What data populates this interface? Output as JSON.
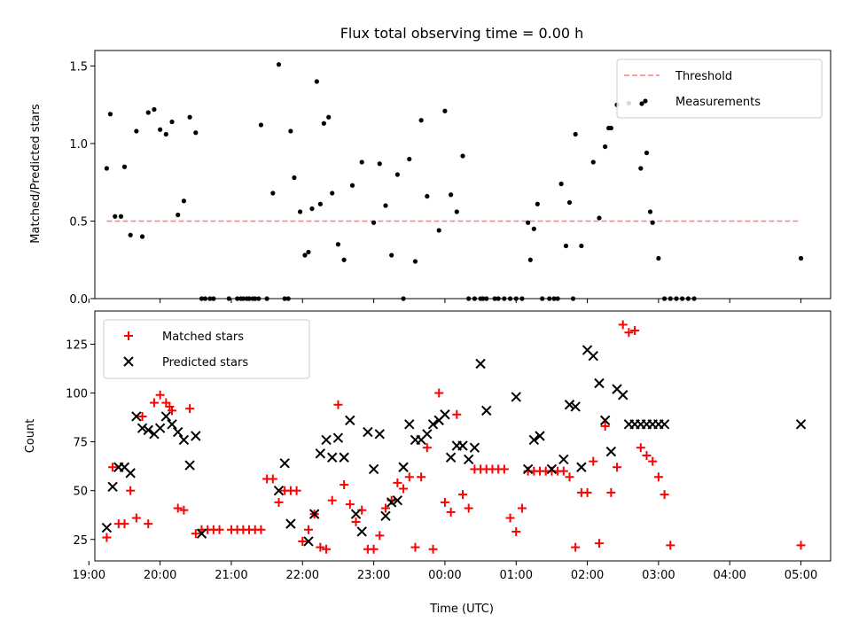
{
  "title": "Flux total observing time = 0.00 h",
  "xlabel": "Time (UTC)",
  "colors": {
    "threshold": "#ff7f7f",
    "measurement": "#000000",
    "matched": "#ff0000",
    "predicted": "#000000"
  },
  "chart_data": [
    {
      "type": "scatter",
      "ylabel": "Matched/Predicted stars",
      "ylim": [
        0,
        1.6
      ],
      "xlim": [
        "19:05",
        "05:25"
      ],
      "x_ticks": [
        "19:00",
        "20:00",
        "21:00",
        "22:00",
        "23:00",
        "00:00",
        "01:00",
        "02:00",
        "03:00",
        "04:00",
        "05:00"
      ],
      "y_ticks": [
        "0.0",
        "0.5",
        "1.0",
        "1.5"
      ],
      "legend_position": "top-right",
      "threshold": {
        "name": "Threshold",
        "value": 0.5,
        "x_range": [
          "19:15",
          "05:00"
        ]
      },
      "series": [
        {
          "name": "Measurements",
          "x": [
            "19:15",
            "19:18",
            "19:22",
            "19:27",
            "19:30",
            "19:35",
            "19:40",
            "19:45",
            "19:50",
            "19:55",
            "20:00",
            "20:05",
            "20:10",
            "20:15",
            "20:20",
            "20:25",
            "20:30",
            "20:35",
            "20:38",
            "20:42",
            "20:45",
            "20:58",
            "21:05",
            "21:08",
            "21:10",
            "21:13",
            "21:15",
            "21:18",
            "21:20",
            "21:23",
            "21:25",
            "21:30",
            "21:35",
            "21:40",
            "21:45",
            "21:48",
            "21:50",
            "21:53",
            "21:58",
            "22:02",
            "22:05",
            "22:08",
            "22:12",
            "22:15",
            "22:18",
            "22:22",
            "22:25",
            "22:30",
            "22:35",
            "22:42",
            "22:50",
            "23:00",
            "23:05",
            "23:10",
            "23:15",
            "23:20",
            "23:25",
            "23:30",
            "23:35",
            "23:40",
            "23:45",
            "23:55",
            "24:00",
            "24:05",
            "24:10",
            "24:15",
            "24:20",
            "24:25",
            "24:30",
            "24:32",
            "24:35",
            "24:42",
            "24:45",
            "24:50",
            "24:55",
            "25:00",
            "25:05",
            "25:10",
            "25:12",
            "25:15",
            "25:18",
            "25:22",
            "25:28",
            "25:32",
            "25:35",
            "25:38",
            "25:42",
            "25:45",
            "25:48",
            "25:50",
            "25:55",
            "26:05",
            "26:10",
            "26:15",
            "26:18",
            "26:20",
            "26:25",
            "26:35",
            "26:45",
            "26:50",
            "26:53",
            "26:55",
            "27:00",
            "27:05",
            "27:10",
            "27:15",
            "27:20",
            "27:25",
            "27:30",
            "29:00"
          ],
          "y": [
            0.84,
            1.19,
            0.53,
            0.53,
            0.85,
            0.41,
            1.08,
            0.4,
            1.2,
            1.22,
            1.09,
            1.06,
            1.14,
            0.54,
            0.63,
            1.17,
            1.07,
            0.0,
            0.0,
            0.0,
            0.0,
            0.0,
            0.0,
            0.0,
            0.0,
            0.0,
            0.0,
            0.0,
            0.0,
            0.0,
            1.12,
            0.0,
            0.68,
            1.51,
            0.0,
            0.0,
            1.08,
            0.78,
            0.56,
            0.28,
            0.3,
            0.58,
            1.4,
            0.61,
            1.13,
            1.17,
            0.68,
            0.35,
            0.25,
            0.73,
            0.88,
            0.49,
            0.87,
            0.6,
            0.28,
            0.8,
            0.0,
            0.9,
            0.24,
            1.15,
            0.66,
            0.44,
            1.21,
            0.67,
            0.56,
            0.92,
            0.0,
            0.0,
            0.0,
            0.0,
            0.0,
            0.0,
            0.0,
            0.0,
            0.0,
            0.0,
            0.0,
            0.49,
            0.25,
            0.45,
            0.61,
            0.0,
            0.0,
            0.0,
            0.0,
            0.74,
            0.34,
            0.62,
            0.0,
            1.06,
            0.34,
            0.88,
            0.52,
            0.98,
            1.1,
            1.1,
            1.25,
            1.26,
            0.84,
            0.94,
            0.56,
            0.49,
            0.26,
            0.0,
            0.0,
            0.0,
            0.0,
            0.0,
            0.0,
            0.26
          ]
        }
      ]
    },
    {
      "type": "scatter",
      "ylabel": "Count",
      "ylim": [
        14,
        142
      ],
      "xlim": [
        "19:05",
        "05:25"
      ],
      "x_ticks": [
        "19:00",
        "20:00",
        "21:00",
        "22:00",
        "23:00",
        "00:00",
        "01:00",
        "02:00",
        "03:00",
        "04:00",
        "05:00"
      ],
      "y_ticks": [
        "25",
        "50",
        "75",
        "100",
        "125"
      ],
      "legend_position": "top-left",
      "series": [
        {
          "name": "Matched stars",
          "x": [
            "19:15",
            "19:20",
            "19:25",
            "19:30",
            "19:35",
            "19:40",
            "19:45",
            "19:50",
            "19:55",
            "20:00",
            "20:05",
            "20:08",
            "20:10",
            "20:15",
            "20:20",
            "20:25",
            "20:30",
            "20:35",
            "20:40",
            "20:45",
            "20:50",
            "21:00",
            "21:05",
            "21:10",
            "21:15",
            "21:20",
            "21:25",
            "21:30",
            "21:35",
            "21:40",
            "21:45",
            "21:50",
            "21:55",
            "22:00",
            "22:05",
            "22:10",
            "22:15",
            "22:20",
            "22:25",
            "22:30",
            "22:35",
            "22:40",
            "22:45",
            "22:50",
            "22:55",
            "23:00",
            "23:05",
            "23:10",
            "23:15",
            "23:20",
            "23:25",
            "23:30",
            "23:35",
            "23:40",
            "23:45",
            "23:50",
            "23:55",
            "24:00",
            "24:05",
            "24:10",
            "24:15",
            "24:20",
            "24:25",
            "24:30",
            "24:35",
            "24:40",
            "24:45",
            "24:50",
            "24:55",
            "25:00",
            "25:05",
            "25:10",
            "25:15",
            "25:20",
            "25:25",
            "25:30",
            "25:35",
            "25:40",
            "25:45",
            "25:50",
            "25:55",
            "26:00",
            "26:05",
            "26:10",
            "26:15",
            "26:20",
            "26:25",
            "26:30",
            "26:35",
            "26:40",
            "26:45",
            "26:50",
            "26:55",
            "27:00",
            "27:05",
            "27:10",
            "29:00"
          ],
          "y": [
            26,
            62,
            33,
            33,
            50,
            36,
            88,
            33,
            95,
            99,
            95,
            93,
            91,
            41,
            40,
            92,
            28,
            30,
            30,
            30,
            30,
            30,
            30,
            30,
            30,
            30,
            30,
            56,
            56,
            44,
            50,
            50,
            50,
            24,
            30,
            38,
            21,
            20,
            45,
            94,
            53,
            43,
            34,
            40,
            20,
            20,
            27,
            41,
            45,
            54,
            51,
            57,
            21,
            57,
            72,
            20,
            100,
            44,
            39,
            89,
            48,
            41,
            61,
            61,
            61,
            61,
            61,
            61,
            36,
            29,
            41,
            60,
            60,
            60,
            60,
            60,
            60,
            60,
            57,
            21,
            49,
            49,
            65,
            23,
            83,
            49,
            62,
            135,
            131,
            132,
            72,
            68,
            65,
            57,
            48,
            22,
            22
          ],
          "marker": "+"
        },
        {
          "name": "Predicted stars",
          "x": [
            "19:15",
            "19:20",
            "19:25",
            "19:30",
            "19:35",
            "19:40",
            "19:45",
            "19:50",
            "19:55",
            "20:00",
            "20:05",
            "20:10",
            "20:15",
            "20:20",
            "20:25",
            "20:30",
            "20:35",
            "21:40",
            "21:45",
            "21:50",
            "22:05",
            "22:10",
            "22:15",
            "22:20",
            "22:25",
            "22:30",
            "22:35",
            "22:40",
            "22:45",
            "22:50",
            "22:55",
            "23:00",
            "23:05",
            "23:10",
            "23:15",
            "23:20",
            "23:25",
            "23:30",
            "23:35",
            "23:40",
            "23:45",
            "23:50",
            "23:55",
            "24:00",
            "24:05",
            "24:10",
            "24:15",
            "24:20",
            "24:25",
            "24:30",
            "24:35",
            "25:00",
            "25:10",
            "25:15",
            "25:20",
            "25:30",
            "25:40",
            "25:45",
            "25:50",
            "25:55",
            "26:00",
            "26:05",
            "26:10",
            "26:15",
            "26:20",
            "26:25",
            "26:30",
            "26:35",
            "26:40",
            "26:45",
            "26:50",
            "26:55",
            "27:00",
            "27:05",
            "29:00"
          ],
          "y": [
            31,
            52,
            62,
            62,
            59,
            88,
            82,
            81,
            79,
            82,
            88,
            84,
            80,
            76,
            63,
            78,
            28,
            50,
            64,
            33,
            24,
            38,
            69,
            76,
            67,
            77,
            67,
            86,
            38,
            29,
            80,
            61,
            79,
            37,
            44,
            45,
            62,
            84,
            76,
            76,
            79,
            84,
            86,
            89,
            67,
            73,
            73,
            66,
            72,
            115,
            91,
            98,
            61,
            76,
            78,
            61,
            66,
            94,
            93,
            62,
            122,
            119,
            105,
            86,
            70,
            102,
            99,
            84,
            84,
            84,
            84,
            84,
            84,
            84,
            84
          ],
          "marker": "x"
        }
      ]
    }
  ]
}
